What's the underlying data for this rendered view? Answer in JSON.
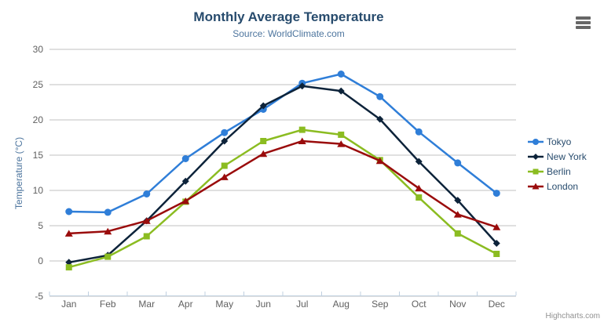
{
  "chart": {
    "credits": "Highcharts.com",
    "context_menu_icon": "hamburger-icon"
  },
  "chart_data": {
    "type": "line",
    "title": "Monthly Average Temperature",
    "subtitle": "Source: WorldClimate.com",
    "xlabel": "",
    "ylabel": "Temperature (°C)",
    "categories": [
      "Jan",
      "Feb",
      "Mar",
      "Apr",
      "May",
      "Jun",
      "Jul",
      "Aug",
      "Sep",
      "Oct",
      "Nov",
      "Dec"
    ],
    "ylim": [
      -5,
      30
    ],
    "ytick_step": 5,
    "grid": true,
    "legend_position": "right",
    "series": [
      {
        "name": "Tokyo",
        "color": "#2f7ed8",
        "marker": "circle",
        "values": [
          7.0,
          6.9,
          9.5,
          14.5,
          18.2,
          21.5,
          25.2,
          26.5,
          23.3,
          18.3,
          13.9,
          9.6
        ]
      },
      {
        "name": "New York",
        "color": "#0d233a",
        "marker": "diamond",
        "values": [
          -0.2,
          0.8,
          5.7,
          11.3,
          17.0,
          22.0,
          24.8,
          24.1,
          20.1,
          14.1,
          8.6,
          2.5
        ]
      },
      {
        "name": "Berlin",
        "color": "#8bbc21",
        "marker": "square",
        "values": [
          -0.9,
          0.6,
          3.5,
          8.4,
          13.5,
          17.0,
          18.6,
          17.9,
          14.3,
          9.0,
          3.9,
          1.0
        ]
      },
      {
        "name": "London",
        "color": "#9a0c0c",
        "marker": "triangle",
        "values": [
          3.9,
          4.2,
          5.7,
          8.5,
          11.9,
          15.2,
          17.0,
          16.6,
          14.2,
          10.3,
          6.6,
          4.8
        ]
      }
    ],
    "style": {
      "grid_color": "#c0c0c0",
      "axis_line_color": "#c0d0e0",
      "axis_label_color": "#606060",
      "title_color": "#274b6d",
      "subtitle_color": "#4d759e",
      "legend_text_color": "#274b6d"
    }
  }
}
